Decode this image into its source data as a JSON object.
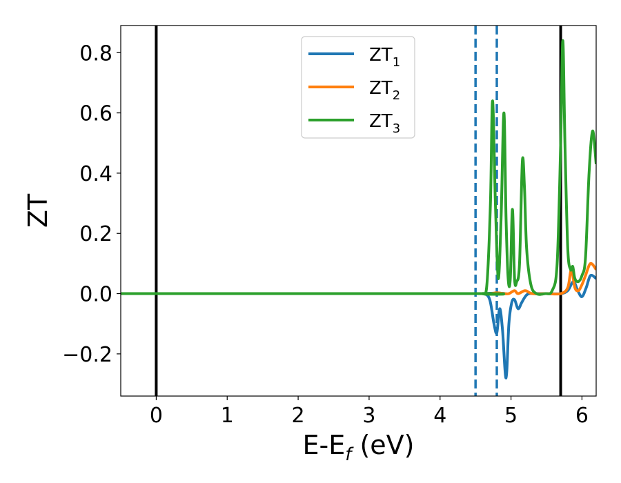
{
  "chart_data": {
    "type": "line",
    "xlabel": {
      "main": "E-E",
      "sub": "f",
      "unit": " (eV)"
    },
    "ylabel": "ZT",
    "xlim": [
      -0.5,
      6.2
    ],
    "ylim": [
      -0.34,
      0.89
    ],
    "xticks": [
      0,
      1,
      2,
      3,
      4,
      5,
      6
    ],
    "xtick_labels": [
      "0",
      "1",
      "2",
      "3",
      "4",
      "5",
      "6"
    ],
    "yticks": [
      -0.2,
      0.0,
      0.2,
      0.4,
      0.6,
      0.8
    ],
    "ytick_labels": [
      "−0.2",
      "0.0",
      "0.2",
      "0.4",
      "0.6",
      "0.8"
    ],
    "grid": false,
    "legend_position": "top-center",
    "vlines": [
      {
        "x": 0.0,
        "style": "solid",
        "color": "#000000"
      },
      {
        "x": 5.7,
        "style": "solid",
        "color": "#000000"
      },
      {
        "x": 4.5,
        "style": "dashed",
        "color": "#1f77b4"
      },
      {
        "x": 4.8,
        "style": "dashed",
        "color": "#1f77b4"
      }
    ],
    "series": [
      {
        "name": "ZT",
        "sub": "1",
        "color": "#1f77b4",
        "x": [
          -0.5,
          4.5,
          4.62,
          4.7,
          4.76,
          4.8,
          4.84,
          4.88,
          4.93,
          4.97,
          5.01,
          5.05,
          5.1,
          5.15,
          5.2,
          5.25,
          5.35,
          5.5,
          5.7,
          5.8,
          5.88,
          5.94,
          6.0,
          6.06,
          6.12,
          6.2
        ],
        "y": [
          0.0,
          0.0,
          0.0,
          -0.02,
          -0.1,
          -0.13,
          -0.05,
          -0.12,
          -0.28,
          -0.1,
          -0.03,
          -0.02,
          -0.05,
          -0.03,
          -0.01,
          0.0,
          0.0,
          0.0,
          0.0,
          0.01,
          0.04,
          0.01,
          -0.01,
          0.02,
          0.06,
          0.05
        ]
      },
      {
        "name": "ZT",
        "sub": "2",
        "color": "#ff7f0e",
        "x": [
          -0.5,
          4.5,
          4.7,
          4.8,
          4.9,
          4.97,
          5.05,
          5.1,
          5.2,
          5.3,
          5.5,
          5.7,
          5.8,
          5.85,
          5.9,
          5.95,
          6.0,
          6.05,
          6.12,
          6.2
        ],
        "y": [
          0.0,
          0.0,
          0.0,
          0.003,
          0.0,
          0.0,
          0.01,
          0.0,
          0.01,
          0.0,
          0.0,
          0.0,
          0.02,
          0.08,
          0.02,
          0.01,
          0.03,
          0.06,
          0.1,
          0.08
        ]
      },
      {
        "name": "ZT",
        "sub": "3",
        "color": "#2ca02c",
        "x": [
          -0.5,
          4.5,
          4.6,
          4.66,
          4.71,
          4.74,
          4.78,
          4.82,
          4.86,
          4.9,
          4.93,
          4.96,
          4.99,
          5.02,
          5.05,
          5.08,
          5.12,
          5.16,
          5.19,
          5.22,
          5.28,
          5.36,
          5.48,
          5.58,
          5.65,
          5.7,
          5.73,
          5.76,
          5.8,
          5.84,
          5.87,
          5.9,
          5.95,
          6.0,
          6.05,
          6.1,
          6.15,
          6.2
        ],
        "y": [
          0.0,
          0.0,
          0.0,
          0.03,
          0.3,
          0.64,
          0.3,
          0.05,
          0.25,
          0.6,
          0.25,
          0.05,
          0.05,
          0.28,
          0.05,
          0.04,
          0.1,
          0.44,
          0.35,
          0.15,
          0.03,
          0.0,
          0.0,
          0.01,
          0.1,
          0.5,
          0.84,
          0.5,
          0.15,
          0.08,
          0.09,
          0.05,
          0.04,
          0.06,
          0.12,
          0.4,
          0.54,
          0.43
        ]
      }
    ]
  }
}
